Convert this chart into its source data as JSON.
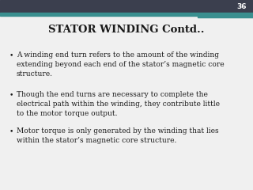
{
  "title": "STATOR WINDING Contd..",
  "slide_number": "36",
  "bullet_points": [
    "A winding end turn refers to the amount of the winding\nextending beyond each end of the stator’s magnetic core\nstructure.",
    "Though the end turns are necessary to complete the\nelectrical path within the winding, they contribute little\nto the motor torque output.",
    "Motor torque is only generated by the winding that lies\nwithin the stator’s magnetic core structure."
  ],
  "bg_color": "#f0f0f0",
  "title_color": "#1a1a1a",
  "text_color": "#1a1a1a",
  "slide_num_color": "#ffffff",
  "top_bar_color": "#3b3f4e",
  "teal_bar_color": "#3a8f8f",
  "teal_right_color": "#3a8f8f",
  "bullet_char": "•",
  "title_fontsize": 9.5,
  "body_fontsize": 6.5,
  "slide_num_fontsize": 6.5
}
